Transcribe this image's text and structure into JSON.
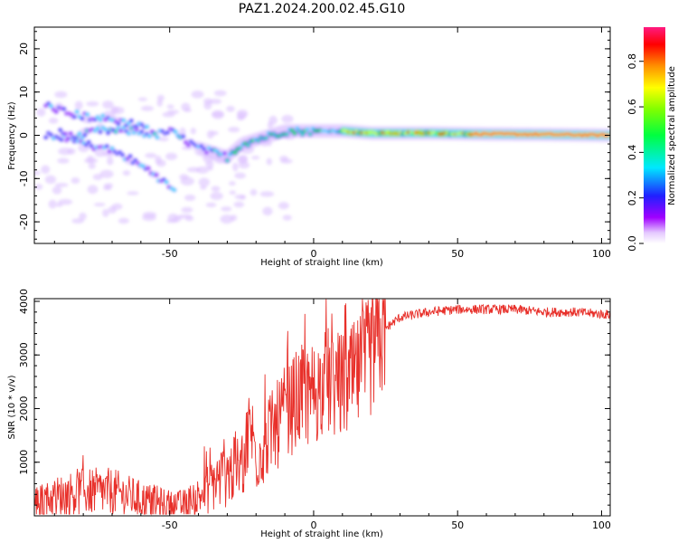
{
  "title": "PAZ1.2024.200.02.45.G10",
  "chart_data": [
    {
      "type": "heatmap",
      "name": "spectrogram",
      "xlabel": "Height of straight line (km)",
      "ylabel": "Frequency (Hz)",
      "xlim": [
        -97,
        103
      ],
      "ylim": [
        -25,
        25
      ],
      "xticks": [
        -50,
        0,
        50,
        100
      ],
      "yticks": [
        -20,
        -10,
        0,
        10,
        20
      ],
      "colorbar": {
        "label": "Normalized spectral amplitude",
        "range": [
          0,
          0.95
        ],
        "ticks": [
          "0.0",
          "0.2",
          "0.4",
          "0.6",
          "0.8"
        ],
        "colormap": "rainbow"
      },
      "ridges": [
        {
          "x": [
            -93,
            -85,
            -75,
            -62,
            -55,
            -50,
            -45,
            -40,
            -35,
            -30,
            -25,
            -20,
            -10,
            0,
            10,
            20,
            40,
            60,
            80,
            103
          ],
          "y": [
            0,
            -1,
            1,
            1,
            0,
            1,
            -1,
            -3,
            -4,
            -5,
            -2,
            -1,
            1,
            1,
            1,
            0.5,
            0.5,
            0.3,
            0.2,
            0
          ]
        },
        {
          "x": [
            -88,
            -80,
            -72,
            -65,
            -60,
            -55,
            -50,
            -48
          ],
          "y": [
            1,
            -2,
            -3,
            -5,
            -7,
            -9,
            -12,
            -13
          ]
        },
        {
          "x": [
            -93,
            -85,
            -75,
            -65,
            -57
          ],
          "y": [
            7,
            5,
            4,
            3,
            2
          ]
        }
      ]
    },
    {
      "type": "line",
      "name": "snr",
      "xlabel": "Height of straight line (km)",
      "ylabel": "SNR (10 * v/v)",
      "xlim": [
        -97,
        103
      ],
      "ylim": [
        0,
        4050
      ],
      "xticks": [
        -50,
        0,
        50,
        100
      ],
      "yticks": [
        1000,
        2000,
        3000,
        4000
      ],
      "series_color": "#e8302a",
      "x": [
        -97,
        -90,
        -80,
        -70,
        -60,
        -55,
        -50,
        -45,
        -40,
        -35,
        -30,
        -25,
        -22,
        -20,
        -15,
        -10,
        -5,
        0,
        5,
        10,
        15,
        20,
        25,
        30,
        40,
        50,
        60,
        70,
        80,
        90,
        103
      ],
      "y": [
        250,
        350,
        450,
        450,
        300,
        250,
        180,
        200,
        350,
        600,
        800,
        900,
        1700,
        1100,
        1500,
        1900,
        2200,
        2300,
        2500,
        2400,
        2600,
        3000,
        3500,
        3700,
        3800,
        3850,
        3850,
        3850,
        3800,
        3800,
        3750
      ]
    }
  ]
}
